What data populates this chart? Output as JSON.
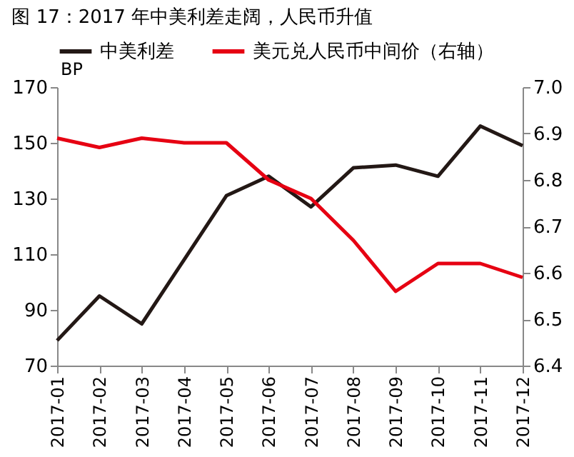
{
  "chart_data": {
    "type": "line",
    "title": "图 17：2017 年中美利差走阔，人民币升值",
    "categories": [
      "2017-01",
      "2017-02",
      "2017-03",
      "2017-04",
      "2017-05",
      "2017-06",
      "2017-07",
      "2017-08",
      "2017-09",
      "2017-10",
      "2017-11",
      "2017-12"
    ],
    "series": [
      {
        "name": "中美利差",
        "color": "#231815",
        "values": [
          79,
          95,
          85,
          108,
          131,
          138,
          127,
          141,
          142,
          138,
          156,
          149
        ]
      },
      {
        "name": "美元兑人民币中间价（右轴）",
        "color": "#e60012",
        "axis": "y2",
        "values": [
          6.89,
          6.87,
          6.89,
          6.88,
          6.88,
          6.8,
          6.76,
          6.67,
          6.56,
          6.62,
          6.62,
          6.59
        ]
      }
    ],
    "ylabel": "BP",
    "ylim": [
      70,
      170
    ],
    "yticks": [
      70,
      90,
      110,
      130,
      150,
      170
    ],
    "y2lim": [
      6.4,
      7.0
    ],
    "y2ticks": [
      {
        "value": 6.4,
        "label": "6.4"
      },
      {
        "value": 6.5,
        "label": "6.5"
      },
      {
        "value": 6.6,
        "label": "6.6"
      },
      {
        "value": 6.7,
        "label": "6.7"
      },
      {
        "value": 6.8,
        "label": "6.8"
      },
      {
        "value": 6.9,
        "label": "6.9"
      },
      {
        "value": 7.0,
        "label": "7.0"
      }
    ],
    "grid": false,
    "legend": "top",
    "marker": "none",
    "line_style": "solid"
  }
}
